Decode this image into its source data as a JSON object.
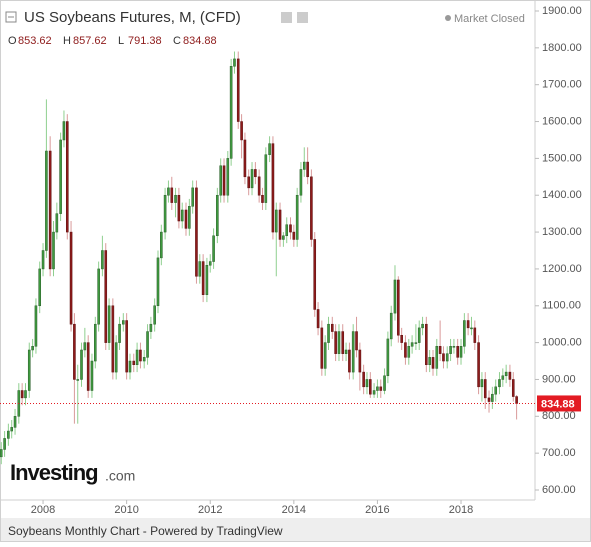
{
  "chart_data": {
    "type": "candlestick",
    "title": "US Soybeans Futures, M, (CFD)",
    "status": "Market Closed",
    "ohlc_labels": [
      "O",
      "H",
      "L",
      "C"
    ],
    "brand": {
      "name": "Investing",
      "suffix": ".com"
    },
    "footer": "Soybeans Monthly Chart - Powered by TradingView",
    "up_color": "#3f9a3f",
    "down_color": "#8e1b1b",
    "last_color": "#e31b23",
    "xlim": [
      2006.97,
      2019.77
    ],
    "xticks": [
      2008,
      2010,
      2012,
      2014,
      2016,
      2018
    ],
    "ylim": [
      600,
      1900
    ],
    "yticks": [
      {
        "value": 600,
        "label": "600.00"
      },
      {
        "value": 700,
        "label": "700.00"
      },
      {
        "value": 800,
        "label": "800.00"
      },
      {
        "value": 900,
        "label": "900.00"
      },
      {
        "value": 1000,
        "label": "1000.00"
      },
      {
        "value": 1100,
        "label": "1100.00"
      },
      {
        "value": 1200,
        "label": "1200.00"
      },
      {
        "value": 1300,
        "label": "1300.00"
      },
      {
        "value": 1400,
        "label": "1400.00"
      },
      {
        "value": 1500,
        "label": "1500.00"
      },
      {
        "value": 1600,
        "label": "1600.00"
      },
      {
        "value": 1700,
        "label": "1700.00"
      },
      {
        "value": 1800,
        "label": "1800.00"
      },
      {
        "value": 1900,
        "label": "1900.00"
      }
    ],
    "x": [
      2007.0,
      2007.08,
      2007.17,
      2007.25,
      2007.33,
      2007.42,
      2007.5,
      2007.58,
      2007.67,
      2007.75,
      2007.83,
      2007.92,
      2008.0,
      2008.08,
      2008.17,
      2008.25,
      2008.33,
      2008.42,
      2008.5,
      2008.58,
      2008.67,
      2008.75,
      2008.83,
      2008.92,
      2009.0,
      2009.08,
      2009.17,
      2009.25,
      2009.33,
      2009.42,
      2009.5,
      2009.58,
      2009.67,
      2009.75,
      2009.83,
      2009.92,
      2010.0,
      2010.08,
      2010.17,
      2010.25,
      2010.33,
      2010.42,
      2010.5,
      2010.58,
      2010.67,
      2010.75,
      2010.83,
      2010.92,
      2011.0,
      2011.08,
      2011.17,
      2011.25,
      2011.33,
      2011.42,
      2011.5,
      2011.58,
      2011.67,
      2011.75,
      2011.83,
      2011.92,
      2012.0,
      2012.08,
      2012.17,
      2012.25,
      2012.33,
      2012.42,
      2012.5,
      2012.58,
      2012.67,
      2012.75,
      2012.83,
      2012.92,
      2013.0,
      2013.08,
      2013.17,
      2013.25,
      2013.33,
      2013.42,
      2013.5,
      2013.58,
      2013.67,
      2013.75,
      2013.83,
      2013.92,
      2014.0,
      2014.08,
      2014.17,
      2014.25,
      2014.33,
      2014.42,
      2014.5,
      2014.58,
      2014.67,
      2014.75,
      2014.83,
      2014.92,
      2015.0,
      2015.08,
      2015.17,
      2015.25,
      2015.33,
      2015.42,
      2015.5,
      2015.58,
      2015.67,
      2015.75,
      2015.83,
      2015.92,
      2016.0,
      2016.08,
      2016.17,
      2016.25,
      2016.33,
      2016.42,
      2016.5,
      2016.58,
      2016.67,
      2016.75,
      2016.83,
      2016.92,
      2017.0,
      2017.08,
      2017.17,
      2017.25,
      2017.33,
      2017.42,
      2017.5,
      2017.58,
      2017.67,
      2017.75,
      2017.83,
      2017.92,
      2018.0,
      2018.08,
      2018.17,
      2018.25,
      2018.33,
      2018.42,
      2018.5,
      2018.58,
      2018.67,
      2018.75,
      2018.83,
      2018.92,
      2019.0,
      2019.08,
      2019.17,
      2019.25,
      2019.33
    ],
    "open": [
      690,
      710,
      740,
      760,
      770,
      800,
      870,
      850,
      870,
      980,
      990,
      1100,
      1200,
      1250,
      1520,
      1200,
      1300,
      1350,
      1550,
      1600,
      1300,
      1050,
      900,
      900,
      980,
      1000,
      870,
      950,
      1050,
      1200,
      1250,
      1000,
      1100,
      920,
      1000,
      1050,
      1060,
      920,
      950,
      940,
      980,
      950,
      960,
      1030,
      1050,
      1100,
      1230,
      1300,
      1400,
      1420,
      1380,
      1400,
      1330,
      1360,
      1310,
      1370,
      1420,
      1180,
      1220,
      1130,
      1210,
      1220,
      1290,
      1400,
      1480,
      1400,
      1500,
      1750,
      1770,
      1600,
      1550,
      1450,
      1420,
      1470,
      1450,
      1400,
      1380,
      1510,
      1540,
      1300,
      1360,
      1280,
      1290,
      1320,
      1300,
      1280,
      1400,
      1470,
      1490,
      1450,
      1280,
      1090,
      1040,
      930,
      1000,
      1050,
      1030,
      970,
      1030,
      970,
      980,
      920,
      1030,
      980,
      920,
      880,
      900,
      860,
      870,
      880,
      870,
      910,
      1010,
      1080,
      1170,
      1020,
      1000,
      960,
      990,
      1000,
      1000,
      1040,
      1050,
      940,
      960,
      930,
      990,
      970,
      950,
      970,
      990,
      990,
      960,
      990,
      1060,
      1040,
      1040,
      1000,
      880,
      900,
      850,
      840,
      860,
      880,
      900,
      910,
      920,
      900,
      853.62
    ],
    "high": [
      730,
      760,
      780,
      790,
      820,
      890,
      890,
      890,
      1000,
      1010,
      1120,
      1220,
      1270,
      1660,
      1560,
      1330,
      1380,
      1570,
      1630,
      1620,
      1330,
      1080,
      940,
      1000,
      1040,
      1020,
      970,
      1070,
      1220,
      1290,
      1270,
      1120,
      1120,
      1020,
      1070,
      1080,
      1080,
      970,
      970,
      1000,
      1000,
      980,
      1050,
      1070,
      1120,
      1250,
      1320,
      1420,
      1440,
      1450,
      1420,
      1420,
      1380,
      1380,
      1390,
      1440,
      1440,
      1240,
      1240,
      1230,
      1240,
      1310,
      1420,
      1500,
      1500,
      1520,
      1770,
      1790,
      1790,
      1620,
      1570,
      1470,
      1490,
      1490,
      1470,
      1420,
      1530,
      1560,
      1560,
      1380,
      1380,
      1300,
      1340,
      1340,
      1320,
      1420,
      1490,
      1530,
      1530,
      1470,
      1300,
      1110,
      1060,
      1020,
      1070,
      1070,
      1050,
      1050,
      1050,
      1000,
      1000,
      1050,
      1070,
      1000,
      940,
      920,
      920,
      890,
      900,
      900,
      930,
      1030,
      1100,
      1210,
      1180,
      1040,
      1020,
      1010,
      1020,
      1050,
      1060,
      1070,
      1070,
      980,
      980,
      1010,
      1060,
      990,
      990,
      1010,
      1010,
      1010,
      1010,
      1080,
      1080,
      1070,
      1060,
      1020,
      920,
      920,
      870,
      880,
      900,
      920,
      930,
      940,
      940,
      920,
      857.62
    ],
    "low": [
      670,
      690,
      720,
      740,
      750,
      780,
      830,
      830,
      850,
      960,
      970,
      1080,
      1180,
      1230,
      1180,
      1180,
      1280,
      1330,
      1530,
      1280,
      1030,
      780,
      780,
      880,
      960,
      850,
      850,
      930,
      1030,
      1180,
      980,
      980,
      900,
      900,
      980,
      1030,
      900,
      900,
      920,
      920,
      930,
      930,
      940,
      1010,
      1030,
      1080,
      1210,
      1280,
      1380,
      1360,
      1340,
      1310,
      1310,
      1290,
      1290,
      1350,
      1160,
      1160,
      1110,
      1110,
      1190,
      1200,
      1270,
      1380,
      1380,
      1380,
      1480,
      1730,
      1580,
      1500,
      1430,
      1400,
      1400,
      1430,
      1380,
      1360,
      1360,
      1490,
      1280,
      1180,
      1260,
      1260,
      1270,
      1280,
      1260,
      1260,
      1380,
      1450,
      1430,
      1260,
      1070,
      1020,
      910,
      910,
      980,
      1010,
      950,
      950,
      950,
      950,
      900,
      900,
      960,
      870,
      860,
      860,
      850,
      850,
      850,
      850,
      860,
      890,
      990,
      1060,
      1000,
      980,
      940,
      940,
      970,
      980,
      980,
      1020,
      920,
      920,
      910,
      910,
      950,
      930,
      930,
      950,
      970,
      940,
      940,
      970,
      1020,
      1020,
      980,
      860,
      840,
      820,
      810,
      820,
      840,
      860,
      880,
      890,
      880,
      840,
      791.38
    ],
    "close": [
      710,
      740,
      760,
      770,
      800,
      870,
      850,
      870,
      980,
      990,
      1100,
      1200,
      1250,
      1520,
      1200,
      1300,
      1350,
      1550,
      1600,
      1300,
      1050,
      900,
      900,
      980,
      1000,
      870,
      950,
      1050,
      1200,
      1250,
      1000,
      1100,
      920,
      1000,
      1050,
      1060,
      920,
      950,
      940,
      980,
      950,
      960,
      1030,
      1050,
      1100,
      1230,
      1300,
      1400,
      1420,
      1380,
      1400,
      1330,
      1360,
      1310,
      1370,
      1420,
      1180,
      1220,
      1130,
      1210,
      1220,
      1290,
      1400,
      1480,
      1400,
      1500,
      1750,
      1770,
      1600,
      1550,
      1450,
      1420,
      1470,
      1450,
      1400,
      1380,
      1510,
      1540,
      1300,
      1360,
      1280,
      1290,
      1320,
      1300,
      1280,
      1400,
      1470,
      1490,
      1450,
      1280,
      1090,
      1040,
      930,
      1000,
      1050,
      1030,
      970,
      1030,
      970,
      980,
      920,
      1030,
      980,
      920,
      880,
      900,
      860,
      870,
      880,
      870,
      910,
      1010,
      1080,
      1170,
      1020,
      1000,
      960,
      990,
      1000,
      1000,
      1040,
      1050,
      940,
      960,
      930,
      990,
      970,
      950,
      970,
      990,
      990,
      960,
      990,
      1060,
      1040,
      1040,
      1000,
      880,
      900,
      850,
      840,
      860,
      880,
      900,
      910,
      920,
      900,
      853.62,
      834.88
    ]
  }
}
